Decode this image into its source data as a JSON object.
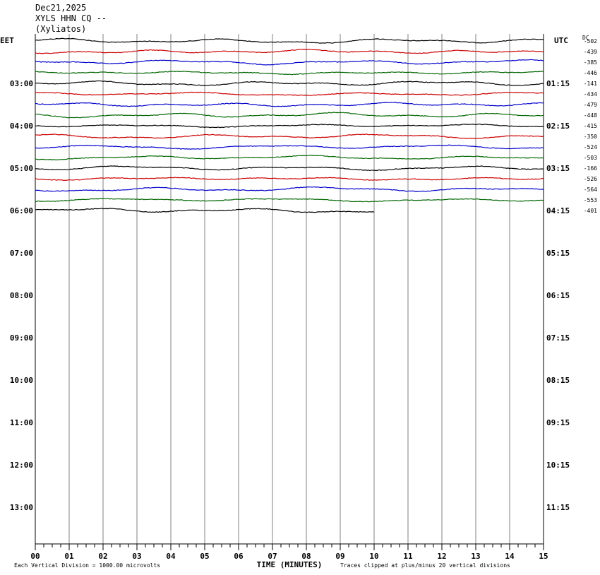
{
  "header": {
    "date": "Dec21,2025",
    "station": "XYLS HHN CQ --",
    "location": "(Xyliatos)"
  },
  "chart_data": {
    "type": "line",
    "left_axis_label": "EET",
    "right_axis_label": "UTC",
    "dc_label": "DC",
    "left_hour_labels": [
      "03:00",
      "04:00",
      "05:00",
      "06:00",
      "07:00",
      "08:00",
      "09:00",
      "10:00",
      "11:00",
      "12:00",
      "13:00"
    ],
    "right_hour_labels": [
      "01:15",
      "02:15",
      "03:15",
      "04:15",
      "05:15",
      "06:15",
      "07:15",
      "08:15",
      "09:15",
      "10:15",
      "11:15"
    ],
    "x_tick_labels": [
      "00",
      "01",
      "02",
      "03",
      "04",
      "05",
      "06",
      "07",
      "08",
      "09",
      "10",
      "11",
      "12",
      "13",
      "14",
      "15"
    ],
    "xlabel": "TIME (MINUTES)",
    "xlim": [
      0,
      15
    ],
    "footer_left": "Each Vertical Division = 1000.00 microvolts",
    "footer_right": "Traces clipped at plus/minus 20 vertical divisions",
    "trace_colors": [
      "#000000",
      "#cc0000",
      "#0000cc",
      "#006600"
    ],
    "dc_offsets": [
      "-502",
      "-439",
      "-385",
      "-446",
      "-141",
      "-434",
      "-479",
      "-448",
      "-415",
      "-350",
      "-524",
      "-503",
      "-166",
      "-526",
      "-564",
      "-553",
      "-401"
    ],
    "last_trace_end_minute": 10
  }
}
